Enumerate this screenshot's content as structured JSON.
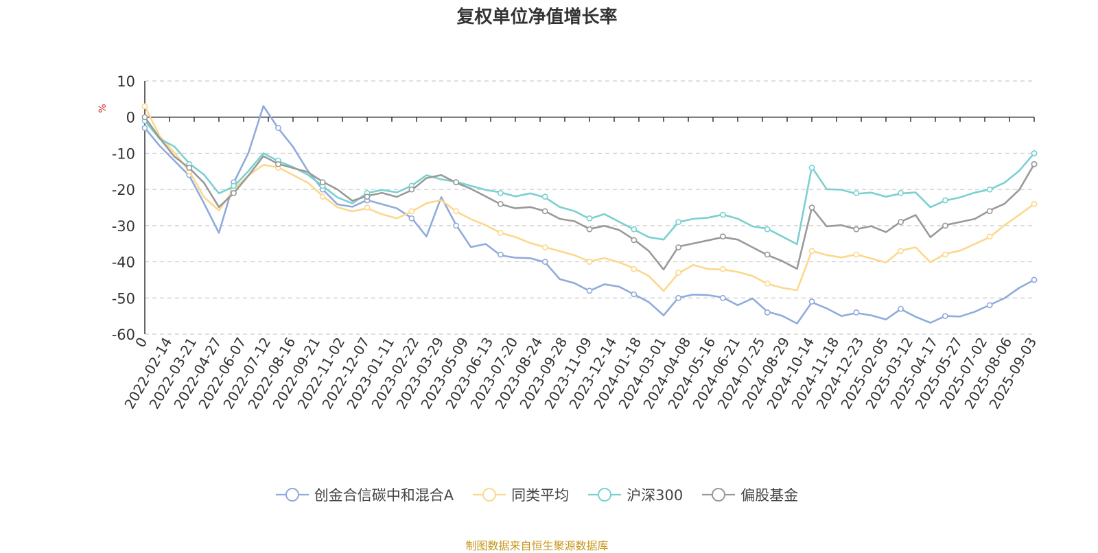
{
  "chart_data": {
    "type": "line",
    "title": "复权单位净值增长率",
    "ylabel": "%",
    "xlabel": "",
    "ylim": [
      -60,
      10
    ],
    "yticks": [
      10,
      0,
      -10,
      -20,
      -30,
      -40,
      -50,
      -60
    ],
    "grid": true,
    "legend_position": "bottom",
    "x_start_label": "0",
    "x_ticks": [
      "2022-02-14",
      "2022-03-21",
      "2022-04-27",
      "2022-06-07",
      "2022-07-12",
      "2022-08-16",
      "2022-09-21",
      "2022-11-02",
      "2022-12-07",
      "2023-01-11",
      "2023-02-22",
      "2023-03-29",
      "2023-05-09",
      "2023-06-13",
      "2023-07-20",
      "2023-08-24",
      "2023-09-28",
      "2023-11-09",
      "2023-12-14",
      "2024-01-18",
      "2024-03-01",
      "2024-04-08",
      "2024-05-16",
      "2024-06-21",
      "2024-07-25",
      "2024-08-29",
      "2024-10-14",
      "2024-11-18",
      "2024-12-23",
      "2025-02-05",
      "2025-03-12",
      "2025-04-17",
      "2025-05-27",
      "2025-07-02",
      "2025-08-06",
      "2025-09-03"
    ],
    "series": [
      {
        "name": "创金合信碳中和混合A",
        "color": "#8fabdb",
        "values": [
          -3,
          -8,
          -12,
          -16,
          -24,
          -32,
          -18,
          -10,
          3,
          -3,
          -8,
          -15,
          -20,
          -24,
          -25,
          -23,
          -24,
          -25,
          -28,
          -33,
          -22,
          -30,
          -36,
          -35,
          -38,
          -39,
          -39,
          -40,
          -45,
          -46,
          -48,
          -46,
          -47,
          -49,
          -51,
          -55,
          -50,
          -49,
          -49,
          -50,
          -52,
          -50,
          -54,
          -55,
          -57,
          -51,
          -53,
          -55,
          -54,
          -55,
          -56,
          -53,
          -55,
          -57,
          -55,
          -55,
          -54,
          -52,
          -50,
          -47,
          -45
        ]
      },
      {
        "name": "同类平均",
        "color": "#fbd88c",
        "values": [
          3,
          -5,
          -10,
          -15,
          -22,
          -26,
          -20,
          -16,
          -13,
          -14,
          -16,
          -18,
          -22,
          -25,
          -26,
          -25,
          -27,
          -28,
          -26,
          -24,
          -23,
          -26,
          -28,
          -30,
          -32,
          -33,
          -35,
          -36,
          -37,
          -38,
          -40,
          -39,
          -40,
          -42,
          -44,
          -48,
          -43,
          -41,
          -42,
          -42,
          -43,
          -44,
          -46,
          -47,
          -48,
          -37,
          -38,
          -39,
          -38,
          -39,
          -40,
          -37,
          -36,
          -40,
          -38,
          -37,
          -35,
          -33,
          -30,
          -27,
          -24
        ]
      },
      {
        "name": "沪深300",
        "color": "#7ad0d0",
        "values": [
          -1,
          -6,
          -8,
          -13,
          -16,
          -21,
          -19,
          -15,
          -10,
          -12,
          -14,
          -16,
          -19,
          -22,
          -24,
          -21,
          -20,
          -21,
          -19,
          -16,
          -17,
          -18,
          -19,
          -20,
          -21,
          -22,
          -21,
          -22,
          -25,
          -26,
          -28,
          -27,
          -29,
          -31,
          -33,
          -34,
          -29,
          -28,
          -28,
          -27,
          -28,
          -30,
          -31,
          -33,
          -35,
          -14,
          -20,
          -20,
          -21,
          -21,
          -22,
          -21,
          -21,
          -25,
          -23,
          -22,
          -21,
          -20,
          -18,
          -15,
          -10
        ]
      },
      {
        "name": "偏股基金",
        "color": "#999999",
        "values": [
          0,
          -6,
          -11,
          -14,
          -18,
          -25,
          -21,
          -16,
          -11,
          -13,
          -14,
          -15,
          -18,
          -20,
          -23,
          -22,
          -21,
          -22,
          -20,
          -17,
          -16,
          -18,
          -20,
          -22,
          -24,
          -25,
          -25,
          -26,
          -28,
          -29,
          -31,
          -30,
          -31,
          -34,
          -37,
          -42,
          -36,
          -35,
          -34,
          -33,
          -34,
          -36,
          -38,
          -40,
          -42,
          -25,
          -30,
          -30,
          -31,
          -30,
          -32,
          -29,
          -27,
          -33,
          -30,
          -29,
          -28,
          -26,
          -24,
          -20,
          -13
        ]
      }
    ]
  },
  "source_note": "制图数据来自恒生聚源数据库"
}
